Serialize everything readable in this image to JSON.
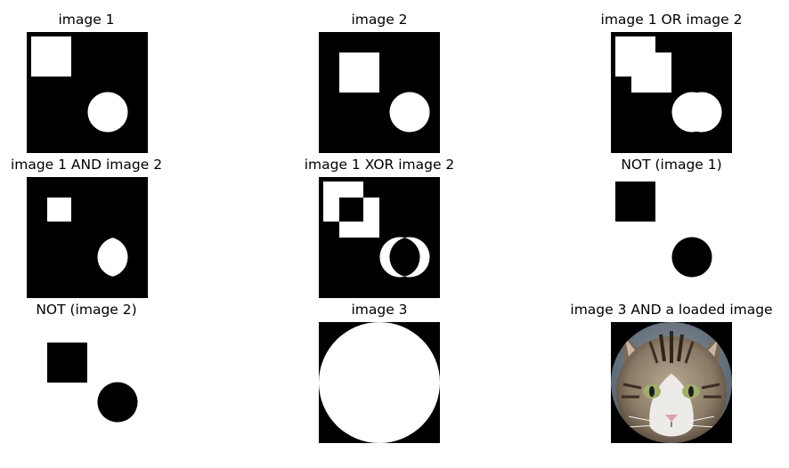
{
  "figure": {
    "panels": [
      {
        "id": "image1",
        "title": "image 1"
      },
      {
        "id": "image2",
        "title": "image 2"
      },
      {
        "id": "or",
        "title": "image 1 OR image 2"
      },
      {
        "id": "and",
        "title": "image 1 AND image 2"
      },
      {
        "id": "xor",
        "title": "image 1 XOR image 2"
      },
      {
        "id": "not1",
        "title": "NOT (image 1)"
      },
      {
        "id": "not2",
        "title": "NOT (image 2)"
      },
      {
        "id": "image3",
        "title": "image 3"
      },
      {
        "id": "cat",
        "title": "image 3 AND a loaded image"
      }
    ],
    "colors": {
      "foreground": "#ffffff",
      "background": "#000000",
      "page": "#ffffff"
    }
  }
}
